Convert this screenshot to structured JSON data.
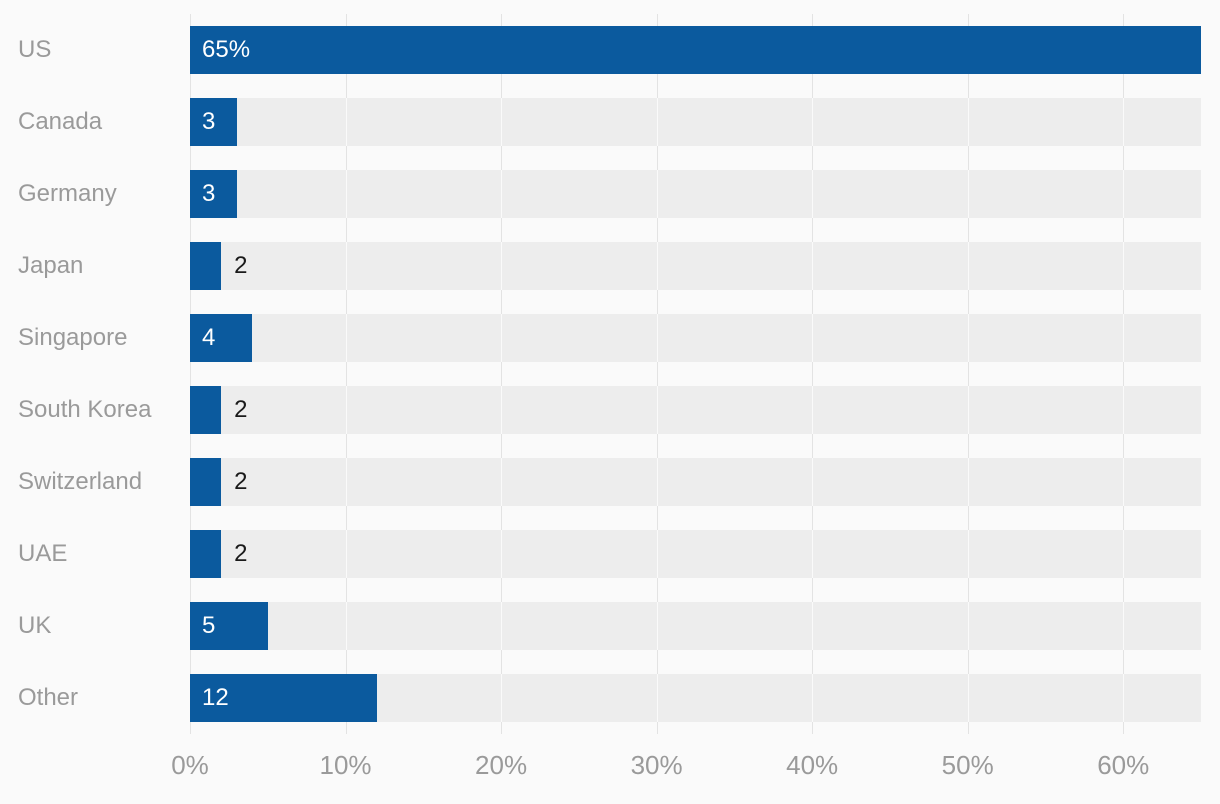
{
  "chart_data": {
    "type": "bar",
    "orientation": "horizontal",
    "title": "",
    "xlabel": "",
    "ylabel": "",
    "xlim": [
      0,
      65
    ],
    "grid": "vertical",
    "legend": "none",
    "x_tick_values": [
      0,
      10,
      20,
      30,
      40,
      50,
      60
    ],
    "x_tick_labels": [
      "0%",
      "10%",
      "20%",
      "30%",
      "40%",
      "50%",
      "60%"
    ],
    "categories": [
      "US",
      "Canada",
      "Germany",
      "Japan",
      "Singapore",
      "South Korea",
      "Switzerland",
      "UAE",
      "UK",
      "Other"
    ],
    "values": [
      65,
      3,
      3,
      2,
      4,
      2,
      2,
      2,
      5,
      12
    ],
    "rows": [
      {
        "label": "US",
        "value": 65,
        "display": "65%",
        "label_inside": true
      },
      {
        "label": "Canada",
        "value": 3,
        "display": "3",
        "label_inside": true
      },
      {
        "label": "Germany",
        "value": 3,
        "display": "3",
        "label_inside": true
      },
      {
        "label": "Japan",
        "value": 2,
        "display": "2",
        "label_inside": false
      },
      {
        "label": "Singapore",
        "value": 4,
        "display": "4",
        "label_inside": true
      },
      {
        "label": "South Korea",
        "value": 2,
        "display": "2",
        "label_inside": false
      },
      {
        "label": "Switzerland",
        "value": 2,
        "display": "2",
        "label_inside": false
      },
      {
        "label": "UAE",
        "value": 2,
        "display": "2",
        "label_inside": false
      },
      {
        "label": "UK",
        "value": 5,
        "display": "5",
        "label_inside": true
      },
      {
        "label": "Other",
        "value": 12,
        "display": "12",
        "label_inside": true
      }
    ],
    "colors": {
      "bar": "#0b5a9e",
      "track": "#ededed",
      "background": "#fafafa",
      "category_label": "#9a9a9a",
      "tick_label": "#9a9a9a",
      "value_inside": "#ffffff",
      "value_outside": "#1a1a1a",
      "gridline": "#e3e3e3",
      "gridline_on_track": "#fafafa"
    }
  }
}
